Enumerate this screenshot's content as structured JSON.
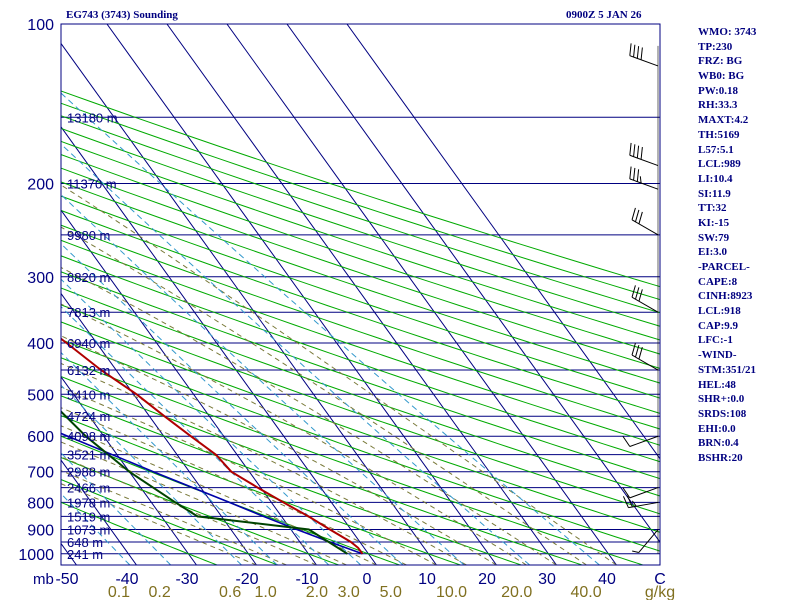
{
  "header": {
    "title_left": "EG743 (3743) Sounding",
    "title_right": "0900Z  5 JAN 26"
  },
  "stats": [
    "WMO: 3743",
    "TP:230",
    "FRZ: BG",
    "WB0: BG",
    "PW:0.18",
    "RH:33.3",
    "MAXT:4.2",
    "TH:5169",
    "L57:5.1",
    "LCL:989",
    "LI:10.4",
    "SI:11.9",
    "TT:32",
    "KI:-15",
    "SW:79",
    "EI:3.0",
    "-PARCEL-",
    "CAPE:8",
    "CINH:8923",
    "LCL:918",
    "CAP:9.9",
    "LFC:-1",
    "-WIND-",
    "STM:351/21",
    "HEL:48",
    "SHR+:0.0",
    "SRDS:108",
    "EHI:0.0",
    "BRN:0.4",
    "BSHR:20"
  ],
  "colors": {
    "frame": "#000080",
    "isobar": "#000080",
    "isotherm": "#000080",
    "dry_adiabat": "#00aa00",
    "moist_adiabat": "#7a7a3a",
    "mixing_ratio": "#3399cc",
    "temperature": "#b00000",
    "dewpoint": "#004400",
    "parcel": "#0000aa",
    "label_blue": "#000080",
    "label_olive": "#807020",
    "wind_barb": "#000000"
  },
  "chart_data": {
    "type": "line",
    "title": "EG743 (3743) Sounding",
    "pressure_ticks": [
      100,
      200,
      300,
      400,
      500,
      600,
      700,
      800,
      900,
      1000
    ],
    "temperature_ticks": [
      -50,
      -40,
      -30,
      -20,
      -10,
      0,
      10,
      20,
      30,
      40
    ],
    "temperature_tick_labels": [
      "-50",
      "-40",
      "-30",
      "-20",
      "-10",
      "0",
      "10",
      "20",
      "30",
      "40"
    ],
    "axis_unit_left": "mb",
    "axis_unit_right": "C",
    "mixing_ratio_labels": [
      "0.1",
      "0.2",
      "0.6",
      "1.0",
      "2.0",
      "3.0",
      "5.0",
      "10.0",
      "20.0",
      "40.0"
    ],
    "mixing_ratio_unit": "g/kg",
    "height_levels": [
      {
        "p": 150,
        "label": "13180 m"
      },
      {
        "p": 200,
        "label": "11370 m"
      },
      {
        "p": 250,
        "label": "9980 m"
      },
      {
        "p": 300,
        "label": "8820 m"
      },
      {
        "p": 350,
        "label": "7813 m"
      },
      {
        "p": 400,
        "label": "6940 m"
      },
      {
        "p": 450,
        "label": "6132 m"
      },
      {
        "p": 500,
        "label": "5410 m"
      },
      {
        "p": 550,
        "label": "4724 m"
      },
      {
        "p": 600,
        "label": "4098 m"
      },
      {
        "p": 650,
        "label": "3521 m"
      },
      {
        "p": 700,
        "label": "2988 m"
      },
      {
        "p": 750,
        "label": "2466 m"
      },
      {
        "p": 800,
        "label": "1978 m"
      },
      {
        "p": 850,
        "label": "1519 m"
      },
      {
        "p": 900,
        "label": "1073 m"
      },
      {
        "p": 950,
        "label": "648 m"
      },
      {
        "p": 1000,
        "label": "241 m"
      }
    ],
    "temperature": {
      "p": [
        1000,
        975,
        950,
        900,
        850,
        800,
        750,
        700,
        650,
        600,
        550,
        500,
        450,
        400,
        350,
        300,
        250,
        230,
        215,
        200,
        150
      ],
      "t": [
        -1,
        -1,
        -1.5,
        -3.5,
        -5.5,
        -8,
        -10.5,
        -13,
        -13.5,
        -15.5,
        -17.5,
        -19.5,
        -22.5,
        -25,
        -28,
        -30.5,
        -34,
        -37,
        -31,
        -25,
        -10
      ]
    },
    "dewpoint": {
      "p": [
        1000,
        900,
        850,
        800,
        700,
        600,
        500,
        400,
        300,
        250,
        230,
        200,
        150
      ],
      "t": [
        -3.5,
        -7,
        -24,
        -26,
        -30,
        -33,
        -35,
        -38,
        -35,
        -40,
        -39,
        -42,
        -31
      ]
    },
    "parcel": {
      "p": [
        1000,
        950,
        900,
        850,
        800,
        700,
        600,
        500,
        400,
        300,
        200,
        150,
        120
      ],
      "t": [
        -1,
        -5,
        -9,
        -13,
        -17,
        -26,
        -36,
        -48,
        -61,
        -79,
        -101,
        -114,
        -125
      ]
    },
    "winds": [
      {
        "p": 120,
        "dir": 290,
        "spd": 40
      },
      {
        "p": 185,
        "dir": 290,
        "spd": 40
      },
      {
        "p": 205,
        "dir": 290,
        "spd": 35
      },
      {
        "p": 250,
        "dir": 300,
        "spd": 30
      },
      {
        "p": 350,
        "dir": 300,
        "spd": 30
      },
      {
        "p": 450,
        "dir": 300,
        "spd": 30
      },
      {
        "p": 600,
        "dir": 250,
        "spd": 10
      },
      {
        "p": 750,
        "dir": 250,
        "spd": 10
      },
      {
        "p": 800,
        "dir": 260,
        "spd": 25
      },
      {
        "p": 900,
        "dir": 220,
        "spd": 5
      }
    ]
  }
}
